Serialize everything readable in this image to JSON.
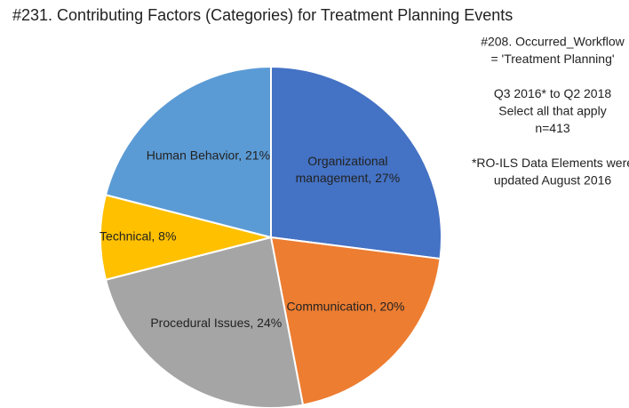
{
  "chart_data": {
    "type": "pie",
    "title": "#231. Contributing Factors (Categories) for Treatment Planning Events",
    "values": [
      27,
      20,
      24,
      8,
      21
    ],
    "value_labels": [
      "Organizational management, 27%",
      "Communication, 20%",
      "Procedural Issues, 24%",
      "Technical, 8%",
      "Human Behavior, 21%"
    ],
    "colors": [
      "#4472c4",
      "#ed7d31",
      "#a5a5a5",
      "#ffc000",
      "#5b9bd5"
    ],
    "annotations": [
      [
        "#208. Occurred_Workflow",
        "= 'Treatment Planning'"
      ],
      [
        "Q3 2016* to Q2 2018",
        "Select all that apply",
        "n=413"
      ],
      [
        "*RO-ILS Data Elements were",
        "updated August 2016"
      ]
    ]
  }
}
